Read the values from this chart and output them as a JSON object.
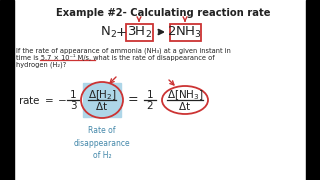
{
  "title": "Example #2- Calculating reaction rate",
  "bg_color": "#ffffff",
  "text_color": "#222222",
  "box_outline_color": "#cc3333",
  "arrow_color": "#cc3333",
  "underline_color": "#cc3333",
  "highlight_box_color": "#aed6e8",
  "caption_color": "#4488aa",
  "body_line1": "If the rate of appearance of ammonia (NH₃) at a given instant in",
  "body_line2": "time is 5.7 × 10⁻¹ M/s, what is the rate of disappearance of",
  "body_line3": "hydrogen (H₂)?",
  "caption": "Rate of\ndisappearance\nof H₂"
}
